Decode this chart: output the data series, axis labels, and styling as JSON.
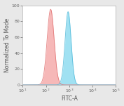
{
  "title": "",
  "xlabel": "FITC-A",
  "ylabel": "Normalized To Mode",
  "xlim_log": [
    10.0,
    100000.0
  ],
  "ylim": [
    0,
    100
  ],
  "yticks": [
    0,
    20,
    40,
    60,
    80,
    100
  ],
  "red_peak_log": 2.2,
  "red_sigma": 0.15,
  "blue_peak_log": 2.95,
  "blue_sigma": 0.13,
  "red_color": "#f4a0a0",
  "red_edge": "#e07070",
  "blue_color": "#80d8ee",
  "blue_edge": "#50b8d8",
  "background_color": "#e8e8e8",
  "plot_bg": "#ffffff",
  "border_color": "#b0b0b0",
  "xlabel_fontsize": 5.5,
  "ylabel_fontsize": 5.5,
  "tick_fontsize": 4.5,
  "red_alpha": 0.75,
  "blue_alpha": 0.75,
  "red_max": 95,
  "blue_max": 92
}
